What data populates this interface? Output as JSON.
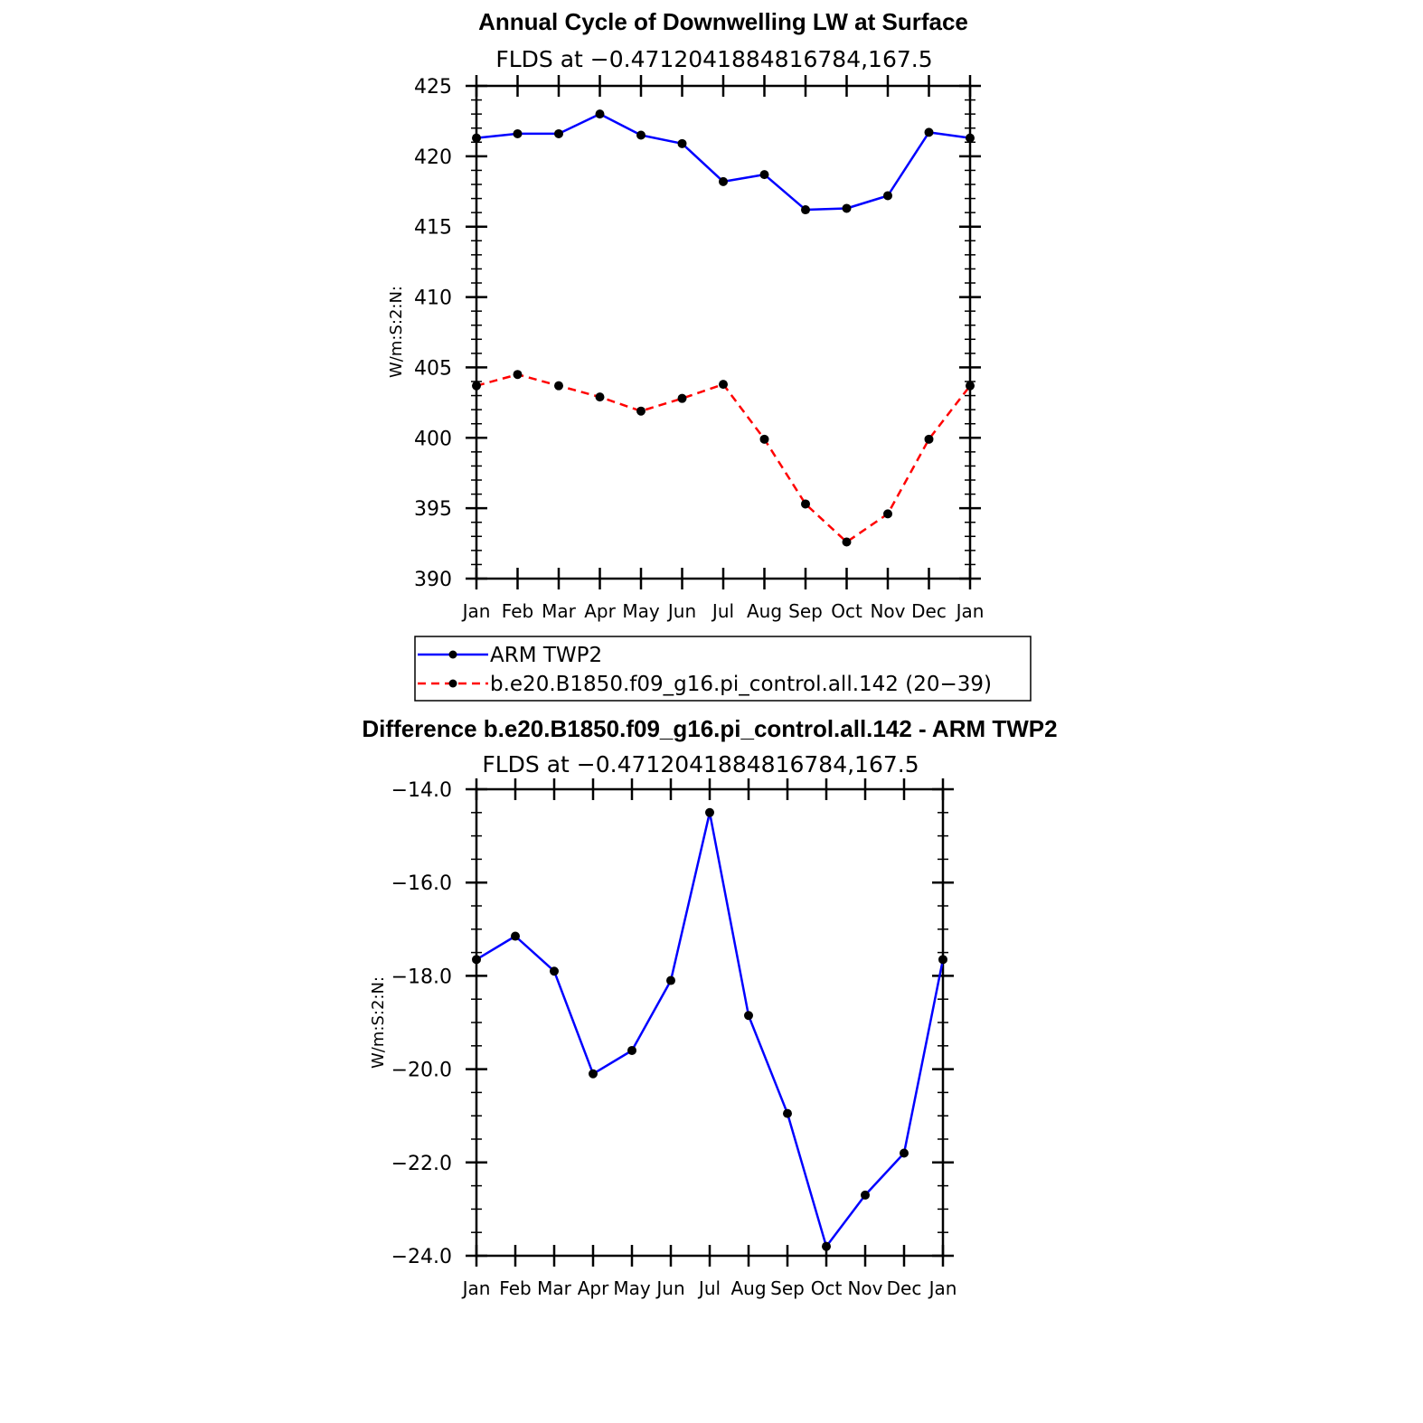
{
  "chart_data": [
    {
      "type": "line",
      "title": "Annual Cycle of Downwelling LW at Surface",
      "subtitle": "FLDS at −0.4712041884816784,167.5",
      "ylabel": "W/m:S:2:N:",
      "xlabel": "",
      "categories": [
        "Jan",
        "Feb",
        "Mar",
        "Apr",
        "May",
        "Jun",
        "Jul",
        "Aug",
        "Sep",
        "Oct",
        "Nov",
        "Dec",
        "Jan"
      ],
      "ylim": [
        390,
        425
      ],
      "yticks": [
        "390",
        "395",
        "400",
        "405",
        "410",
        "415",
        "420",
        "425"
      ],
      "grid": false,
      "legend_placement": "below",
      "series": [
        {
          "name": "ARM TWP2",
          "color": "#0000ff",
          "dash": "solid",
          "values": [
            421.3,
            421.6,
            421.6,
            423.0,
            421.5,
            420.9,
            418.2,
            418.7,
            416.2,
            416.3,
            417.2,
            421.7,
            421.3
          ]
        },
        {
          "name": "b.e20.B1850.f09_g16.pi_control.all.142 (20−39)",
          "color": "#ff0000",
          "dash": "dashed",
          "values": [
            403.7,
            404.5,
            403.7,
            402.9,
            401.9,
            402.8,
            403.8,
            399.9,
            395.3,
            392.6,
            394.6,
            399.9,
            403.7
          ]
        }
      ]
    },
    {
      "type": "line",
      "title": "Difference b.e20.B1850.f09_g16.pi_control.all.142 - ARM TWP2",
      "subtitle": "FLDS at −0.4712041884816784,167.5",
      "ylabel": "W/m:S:2:N:",
      "xlabel": "",
      "categories": [
        "Jan",
        "Feb",
        "Mar",
        "Apr",
        "May",
        "Jun",
        "Jul",
        "Aug",
        "Sep",
        "Oct",
        "Nov",
        "Dec",
        "Jan"
      ],
      "ylim": [
        -24.0,
        -14.0
      ],
      "yticks": [
        "−24.0",
        "−22.0",
        "−20.0",
        "−18.0",
        "−16.0",
        "−14.0"
      ],
      "grid": false,
      "series": [
        {
          "color": "#0000ff",
          "dash": "solid",
          "values": [
            -17.65,
            -17.15,
            -17.9,
            -20.1,
            -19.6,
            -18.1,
            -14.5,
            -18.85,
            -20.95,
            -23.8,
            -22.7,
            -21.8,
            -17.65
          ]
        }
      ]
    }
  ]
}
